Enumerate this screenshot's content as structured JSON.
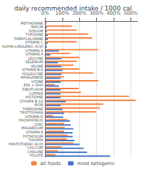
{
  "chart_data": {
    "type": "bar",
    "orientation": "horizontal",
    "title": "daily recommended intake / 1000 cal",
    "categories": [
      "METHIONINE",
      "NIACIN",
      "SODIUM",
      "TYROSINE",
      "PHENYLALANINE",
      "VITAMIN C",
      "ALPHA-LINOLENIC ACID",
      "VITAMIN K",
      "VITAMIN A",
      "LEUCINE",
      "SELENIUM",
      "VALINE",
      "VITAMIN B-6",
      "ISOLEUCINE",
      "MANGANESE",
      "LYSINE",
      "EPA + DHA",
      "RIBOFLAVIN",
      "COPPER",
      "HISTIDINE",
      "VITAMIN B-12",
      "IRON",
      "THREONINE",
      "TRYPTOPHAN",
      "VITAMIN D",
      "PHOSPHORUS",
      "ZINC",
      "MAGNESIUM",
      "VITAMIN E",
      "POTASSIUM",
      "THIAMIN",
      "PANTOTHENIC ACID",
      "CALCIUM",
      "CHOLINE",
      "FOLATE"
    ],
    "series": [
      {
        "name": "all foods",
        "color": "#F4813A",
        "values": [
          10,
          155,
          185,
          250,
          275,
          185,
          8,
          310,
          145,
          200,
          185,
          165,
          200,
          280,
          110,
          310,
          55,
          195,
          210,
          490,
          530,
          340,
          320,
          295,
          45,
          130,
          110,
          115,
          110,
          130,
          125,
          165,
          95,
          75,
          60
        ]
      },
      {
        "name": "most ketogenic",
        "color": "#4472C4",
        "values": [
          5,
          10,
          10,
          15,
          15,
          15,
          10,
          80,
          30,
          95,
          75,
          95,
          100,
          95,
          90,
          90,
          80,
          90,
          90,
          90,
          120,
          90,
          100,
          110,
          105,
          145,
          150,
          165,
          160,
          160,
          170,
          200,
          225,
          245,
          380
        ]
      }
    ],
    "xlim": [
      0,
      540
    ],
    "xticks": [
      {
        "value": 0,
        "label": "0%"
      },
      {
        "value": 100,
        "label": "100%"
      },
      {
        "value": 200,
        "label": "200%"
      },
      {
        "value": 300,
        "label": "300%"
      },
      {
        "value": 400,
        "label": "400%"
      },
      {
        "value": 500,
        "label": "500%"
      }
    ],
    "grid": true,
    "legend": "bottom"
  }
}
